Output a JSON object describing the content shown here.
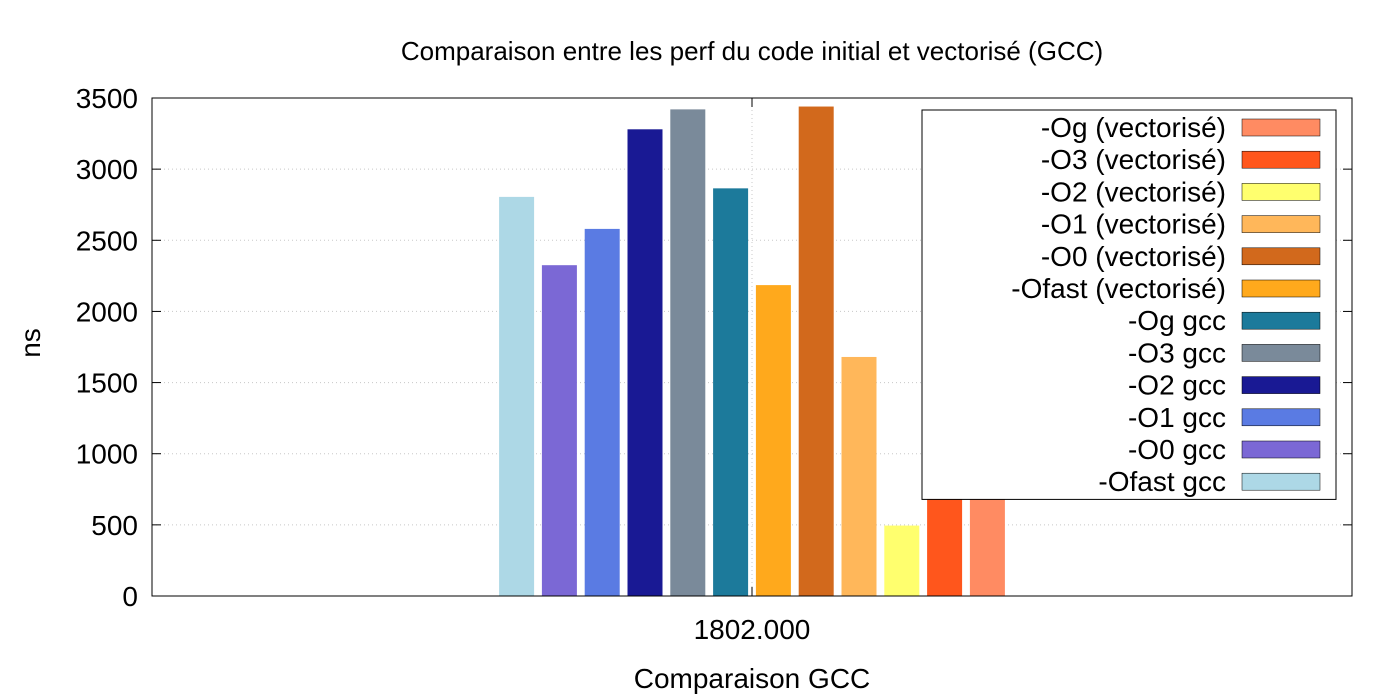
{
  "chart_data": {
    "type": "bar",
    "title": "Comparaison entre les perf du code initial et vectorisé (GCC)",
    "xlabel": "Comparaison GCC",
    "ylabel": "ns",
    "categories": [
      "1802.000"
    ],
    "ylim": [
      0,
      3500
    ],
    "yticks": [
      0,
      500,
      1000,
      1500,
      2000,
      2500,
      3000,
      3500
    ],
    "grid": true,
    "legend_position": "top-right",
    "series": [
      {
        "name": "-Ofast gcc",
        "values": [
          2805
        ],
        "color": "#add8e6"
      },
      {
        "name": "-O0 gcc",
        "values": [
          2325
        ],
        "color": "#7b68d5"
      },
      {
        "name": "-O1 gcc",
        "values": [
          2580
        ],
        "color": "#5a7be3"
      },
      {
        "name": "-O2 gcc",
        "values": [
          3280
        ],
        "color": "#191994"
      },
      {
        "name": "-O3 gcc",
        "values": [
          3420
        ],
        "color": "#7a8a9a"
      },
      {
        "name": "-Og gcc",
        "values": [
          2865
        ],
        "color": "#1c7a9b"
      },
      {
        "name": "-Ofast (vectorisé)",
        "values": [
          2185
        ],
        "color": "#ffa91c"
      },
      {
        "name": "-O0 (vectorisé)",
        "values": [
          3440
        ],
        "color": "#d2691c"
      },
      {
        "name": "-O1 (vectorisé)",
        "values": [
          1680
        ],
        "color": "#ffb75a"
      },
      {
        "name": "-O2 (vectorisé)",
        "values": [
          495
        ],
        "color": "#ffff6e"
      },
      {
        "name": "-O3 (vectorisé)",
        "values": [
          895
        ],
        "color": "#ff561c"
      },
      {
        "name": "-Og (vectorisé)",
        "values": [
          1800
        ],
        "color": "#ff8b62"
      }
    ]
  }
}
